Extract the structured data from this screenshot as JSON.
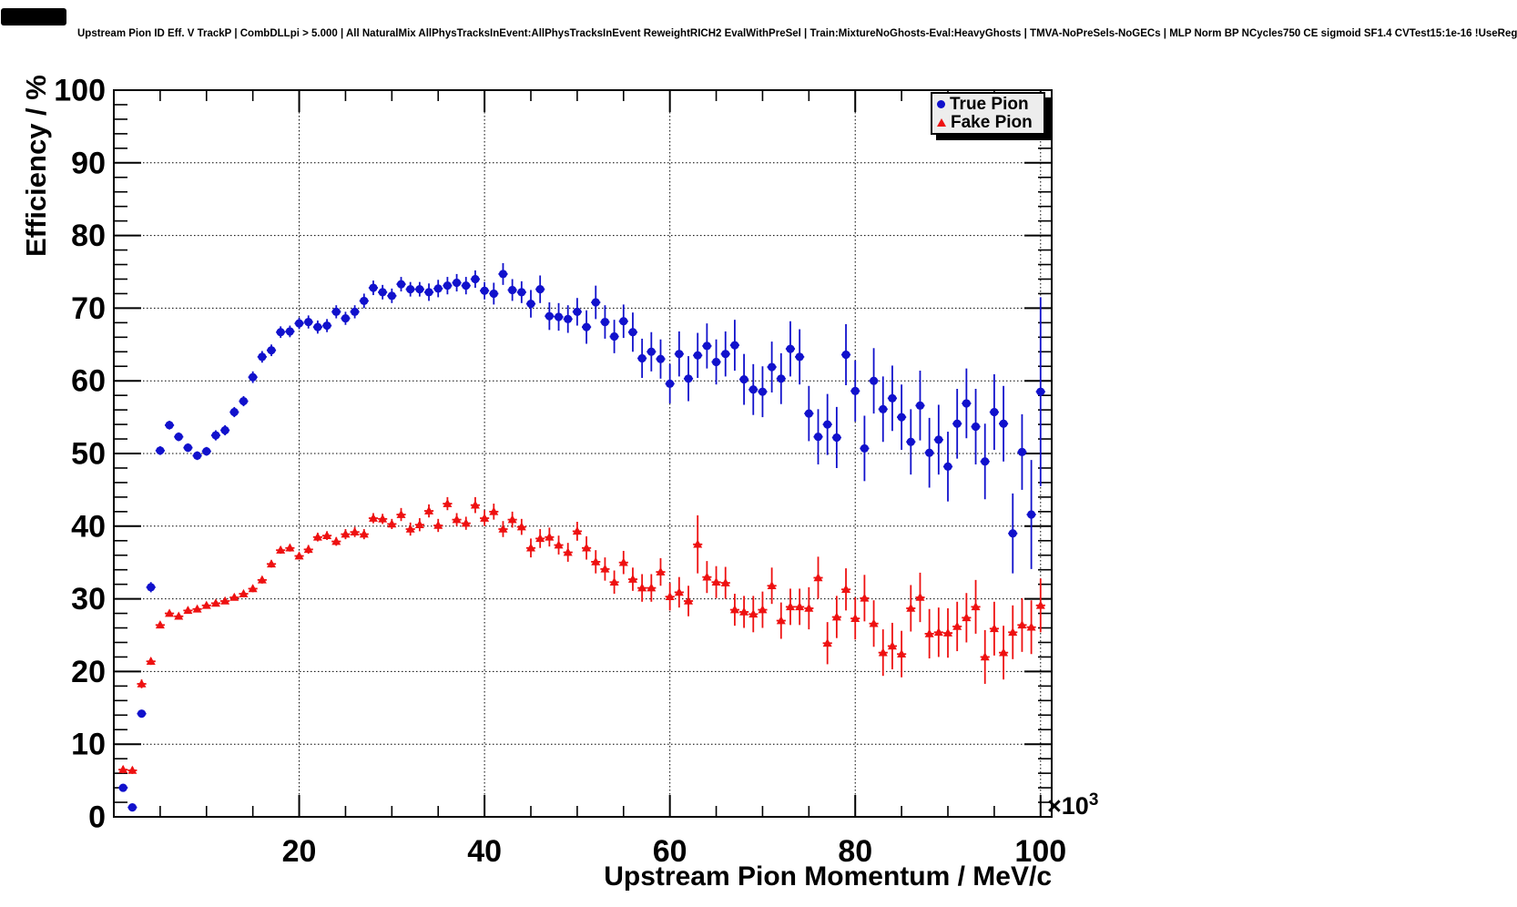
{
  "colors": {
    "background": "#ffffff",
    "frame": "#000000",
    "grid": "#000000",
    "legend_fill": "#ededed",
    "true_pion": "#1111cc",
    "fake_pion": "#ee1111",
    "corner_box": "#000000"
  },
  "chart_data": {
    "type": "scatter",
    "title": "Upstream Pion ID Eff. V TrackP | CombDLLpi > 5.000 | All NaturalMix AllPhysTracksInEvent:AllPhysTracksInEvent ReweightRICH2 EvalWithPreSel | Train:MixtureNoGhosts-Eval:HeavyGhosts | TMVA-NoPreSels-NoGECs | MLP Norm BP NCycles750 CE sigmoid SF1.4 CVTest15:1e-16 !UseReg",
    "xlabel": "Upstream Pion Momentum / MeV/c",
    "ylabel": "Efficiency / %",
    "x_axis_multiplier": "×10³",
    "x_mult_base": "×10",
    "x_mult_exp": "3",
    "xlim": [
      0,
      101.2
    ],
    "ylim": [
      0,
      100
    ],
    "x_ticks": [
      20,
      40,
      60,
      80,
      100
    ],
    "y_ticks": [
      0,
      10,
      20,
      30,
      40,
      50,
      60,
      70,
      80,
      90,
      100
    ],
    "x_minor_step": 5,
    "y_minor_step": 2,
    "grid": "dotted",
    "xerr_half_width": 0.5,
    "legend": {
      "position": "top-right",
      "entries": [
        {
          "label": "True Pion",
          "marker": "circle",
          "color": "#1111cc"
        },
        {
          "label": "Fake Pion",
          "marker": "triangle",
          "color": "#ee1111"
        }
      ]
    },
    "series": [
      {
        "name": "True Pion",
        "marker": "circle",
        "color": "#1111cc",
        "x": [
          1,
          2,
          3,
          4,
          5,
          6,
          7,
          8,
          9,
          10,
          11,
          12,
          13,
          14,
          15,
          16,
          17,
          18,
          19,
          20,
          21,
          22,
          23,
          24,
          25,
          26,
          27,
          28,
          29,
          30,
          31,
          32,
          33,
          34,
          35,
          36,
          37,
          38,
          39,
          40,
          41,
          42,
          43,
          44,
          45,
          46,
          47,
          48,
          49,
          50,
          51,
          52,
          53,
          54,
          55,
          56,
          57,
          58,
          59,
          60,
          61,
          62,
          63,
          64,
          65,
          66,
          67,
          68,
          69,
          70,
          71,
          72,
          73,
          74,
          75,
          76,
          77,
          78,
          79,
          80,
          81,
          82,
          83,
          84,
          85,
          86,
          87,
          88,
          89,
          90,
          91,
          92,
          93,
          94,
          95,
          96,
          97,
          98,
          99,
          100
        ],
        "y": [
          4.0,
          1.3,
          14.2,
          31.6,
          50.4,
          53.9,
          52.3,
          50.8,
          49.7,
          50.3,
          52.5,
          53.2,
          55.7,
          57.2,
          60.5,
          63.3,
          64.2,
          66.7,
          66.8,
          67.9,
          68.1,
          67.4,
          67.6,
          69.5,
          68.6,
          69.5,
          71.0,
          72.8,
          72.2,
          71.7,
          73.3,
          72.6,
          72.6,
          72.2,
          72.7,
          73.1,
          73.5,
          73.1,
          74.0,
          72.4,
          72.0,
          74.7,
          72.5,
          72.2,
          70.6,
          72.6,
          68.9,
          68.8,
          68.5,
          69.5,
          67.4,
          70.8,
          68.1,
          66.1,
          68.2,
          66.7,
          63.1,
          64.0,
          63.0,
          59.6,
          63.7,
          60.3,
          63.5,
          64.8,
          62.6,
          63.7,
          64.9,
          60.2,
          58.8,
          58.5,
          61.9,
          60.3,
          64.4,
          63.3,
          55.5,
          52.3,
          54.0,
          52.2,
          63.6,
          58.6,
          50.7,
          60.0,
          56.1,
          57.6,
          55.0,
          51.6,
          56.6,
          50.1,
          51.9,
          48.2,
          54.1,
          56.9,
          53.7,
          48.9,
          55.7,
          54.1,
          39.0,
          50.2,
          41.6,
          58.5
        ],
        "yerr": [
          0.3,
          0.3,
          0.5,
          0.7,
          0.6,
          0.6,
          0.6,
          0.6,
          0.6,
          0.6,
          0.7,
          0.7,
          0.7,
          0.7,
          0.8,
          0.8,
          0.8,
          0.8,
          0.8,
          0.8,
          0.9,
          0.9,
          0.9,
          0.9,
          0.9,
          0.9,
          1.0,
          1.0,
          1.0,
          1.0,
          1.0,
          1.0,
          1.0,
          1.2,
          1.2,
          1.2,
          1.2,
          1.2,
          1.2,
          1.2,
          1.5,
          1.5,
          1.5,
          1.5,
          1.9,
          1.9,
          1.9,
          1.9,
          1.9,
          1.9,
          2.3,
          2.3,
          2.3,
          2.3,
          2.3,
          2.7,
          2.7,
          2.7,
          2.7,
          2.7,
          3.1,
          3.1,
          3.1,
          3.1,
          3.1,
          3.1,
          3.5,
          3.5,
          3.5,
          3.5,
          3.5,
          3.5,
          3.8,
          3.8,
          3.8,
          3.8,
          4.2,
          4.2,
          4.2,
          4.2,
          4.5,
          4.5,
          4.5,
          4.5,
          4.5,
          4.5,
          4.8,
          4.8,
          4.8,
          4.8,
          4.8,
          4.8,
          5.2,
          5.2,
          5.2,
          5.2,
          5.5,
          5.2,
          7.5,
          13.0
        ]
      },
      {
        "name": "Fake Pion",
        "marker": "triangle",
        "color": "#ee1111",
        "x": [
          1,
          2,
          3,
          4,
          5,
          6,
          7,
          8,
          9,
          10,
          11,
          12,
          13,
          14,
          15,
          16,
          17,
          18,
          19,
          20,
          21,
          22,
          23,
          24,
          25,
          26,
          27,
          28,
          29,
          30,
          31,
          32,
          33,
          34,
          35,
          36,
          37,
          38,
          39,
          40,
          41,
          42,
          43,
          44,
          45,
          46,
          47,
          48,
          49,
          50,
          51,
          52,
          53,
          54,
          55,
          56,
          57,
          58,
          59,
          60,
          61,
          62,
          63,
          64,
          65,
          66,
          67,
          68,
          69,
          70,
          71,
          72,
          73,
          74,
          75,
          76,
          77,
          78,
          79,
          80,
          81,
          82,
          83,
          84,
          85,
          86,
          87,
          88,
          89,
          90,
          91,
          92,
          93,
          94,
          95,
          96,
          97,
          98,
          99,
          100
        ],
        "y": [
          6.5,
          6.4,
          18.3,
          21.4,
          26.4,
          28.0,
          27.6,
          28.4,
          28.6,
          29.1,
          29.4,
          29.7,
          30.2,
          30.7,
          31.4,
          32.6,
          34.8,
          36.7,
          37.0,
          35.9,
          36.8,
          38.5,
          38.7,
          37.9,
          38.9,
          39.2,
          38.9,
          41.1,
          41.0,
          40.3,
          41.6,
          39.6,
          40.2,
          42.1,
          40.1,
          43.1,
          40.9,
          40.4,
          42.9,
          41.1,
          42.0,
          39.6,
          40.9,
          39.9,
          37.0,
          38.3,
          38.5,
          37.4,
          36.4,
          39.3,
          37.0,
          35.1,
          34.1,
          32.3,
          35.0,
          32.7,
          31.5,
          31.5,
          33.7,
          30.3,
          30.9,
          29.7,
          37.5,
          33.0,
          32.3,
          32.2,
          28.5,
          28.2,
          27.9,
          28.5,
          31.8,
          27.0,
          28.9,
          28.9,
          28.7,
          32.9,
          23.9,
          27.5,
          31.3,
          27.3,
          30.1,
          26.6,
          22.6,
          23.5,
          22.4,
          28.7,
          30.2,
          25.2,
          25.4,
          25.3,
          26.2,
          27.4,
          28.9,
          22.0,
          25.9,
          22.6,
          25.4,
          26.4,
          26.1,
          29.1
        ],
        "yerr": [
          0.5,
          0.5,
          0.6,
          0.5,
          0.4,
          0.4,
          0.4,
          0.4,
          0.4,
          0.4,
          0.4,
          0.4,
          0.4,
          0.4,
          0.5,
          0.5,
          0.5,
          0.5,
          0.5,
          0.5,
          0.6,
          0.6,
          0.6,
          0.6,
          0.7,
          0.7,
          0.7,
          0.7,
          0.7,
          0.7,
          0.9,
          0.9,
          0.9,
          0.9,
          0.9,
          0.9,
          0.9,
          0.9,
          1.1,
          1.1,
          1.1,
          1.1,
          1.1,
          1.1,
          1.3,
          1.3,
          1.3,
          1.3,
          1.3,
          1.3,
          1.6,
          1.6,
          1.6,
          1.6,
          1.6,
          1.6,
          1.9,
          1.9,
          1.9,
          1.9,
          2.1,
          2.1,
          4.0,
          2.2,
          2.2,
          2.2,
          2.2,
          2.2,
          2.5,
          2.5,
          2.5,
          2.5,
          2.5,
          2.5,
          2.9,
          2.9,
          2.9,
          2.9,
          2.9,
          2.9,
          3.2,
          3.2,
          3.2,
          3.2,
          3.2,
          3.2,
          3.4,
          3.4,
          3.4,
          3.4,
          3.4,
          3.4,
          3.7,
          3.7,
          3.7,
          3.7,
          3.7,
          3.7,
          3.7,
          3.7
        ]
      }
    ]
  }
}
